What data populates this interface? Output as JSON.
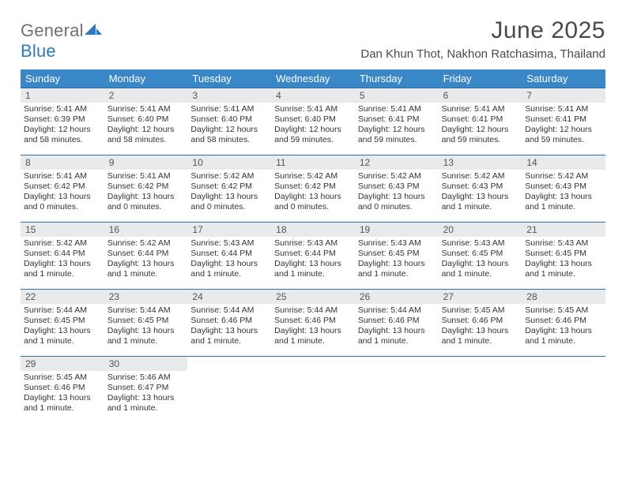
{
  "logo": {
    "general": "General",
    "blue": "Blue"
  },
  "title": "June 2025",
  "location": "Dan Khun Thot, Nakhon Ratchasima, Thailand",
  "colors": {
    "header_bg": "#3a87c8",
    "header_text": "#ffffff",
    "week_border": "#2e6fa8",
    "date_bar_bg": "#e9eaeb",
    "body_text": "#333333",
    "title_text": "#4a4a4a",
    "logo_gray": "#6f7074",
    "logo_blue": "#2e78bd"
  },
  "weekdays": [
    "Sunday",
    "Monday",
    "Tuesday",
    "Wednesday",
    "Thursday",
    "Friday",
    "Saturday"
  ],
  "weeks": [
    [
      {
        "date": "1",
        "sunrise": "Sunrise: 5:41 AM",
        "sunset": "Sunset: 6:39 PM",
        "daylight": "Daylight: 12 hours and 58 minutes."
      },
      {
        "date": "2",
        "sunrise": "Sunrise: 5:41 AM",
        "sunset": "Sunset: 6:40 PM",
        "daylight": "Daylight: 12 hours and 58 minutes."
      },
      {
        "date": "3",
        "sunrise": "Sunrise: 5:41 AM",
        "sunset": "Sunset: 6:40 PM",
        "daylight": "Daylight: 12 hours and 58 minutes."
      },
      {
        "date": "4",
        "sunrise": "Sunrise: 5:41 AM",
        "sunset": "Sunset: 6:40 PM",
        "daylight": "Daylight: 12 hours and 59 minutes."
      },
      {
        "date": "5",
        "sunrise": "Sunrise: 5:41 AM",
        "sunset": "Sunset: 6:41 PM",
        "daylight": "Daylight: 12 hours and 59 minutes."
      },
      {
        "date": "6",
        "sunrise": "Sunrise: 5:41 AM",
        "sunset": "Sunset: 6:41 PM",
        "daylight": "Daylight: 12 hours and 59 minutes."
      },
      {
        "date": "7",
        "sunrise": "Sunrise: 5:41 AM",
        "sunset": "Sunset: 6:41 PM",
        "daylight": "Daylight: 12 hours and 59 minutes."
      }
    ],
    [
      {
        "date": "8",
        "sunrise": "Sunrise: 5:41 AM",
        "sunset": "Sunset: 6:42 PM",
        "daylight": "Daylight: 13 hours and 0 minutes."
      },
      {
        "date": "9",
        "sunrise": "Sunrise: 5:41 AM",
        "sunset": "Sunset: 6:42 PM",
        "daylight": "Daylight: 13 hours and 0 minutes."
      },
      {
        "date": "10",
        "sunrise": "Sunrise: 5:42 AM",
        "sunset": "Sunset: 6:42 PM",
        "daylight": "Daylight: 13 hours and 0 minutes."
      },
      {
        "date": "11",
        "sunrise": "Sunrise: 5:42 AM",
        "sunset": "Sunset: 6:42 PM",
        "daylight": "Daylight: 13 hours and 0 minutes."
      },
      {
        "date": "12",
        "sunrise": "Sunrise: 5:42 AM",
        "sunset": "Sunset: 6:43 PM",
        "daylight": "Daylight: 13 hours and 0 minutes."
      },
      {
        "date": "13",
        "sunrise": "Sunrise: 5:42 AM",
        "sunset": "Sunset: 6:43 PM",
        "daylight": "Daylight: 13 hours and 1 minute."
      },
      {
        "date": "14",
        "sunrise": "Sunrise: 5:42 AM",
        "sunset": "Sunset: 6:43 PM",
        "daylight": "Daylight: 13 hours and 1 minute."
      }
    ],
    [
      {
        "date": "15",
        "sunrise": "Sunrise: 5:42 AM",
        "sunset": "Sunset: 6:44 PM",
        "daylight": "Daylight: 13 hours and 1 minute."
      },
      {
        "date": "16",
        "sunrise": "Sunrise: 5:42 AM",
        "sunset": "Sunset: 6:44 PM",
        "daylight": "Daylight: 13 hours and 1 minute."
      },
      {
        "date": "17",
        "sunrise": "Sunrise: 5:43 AM",
        "sunset": "Sunset: 6:44 PM",
        "daylight": "Daylight: 13 hours and 1 minute."
      },
      {
        "date": "18",
        "sunrise": "Sunrise: 5:43 AM",
        "sunset": "Sunset: 6:44 PM",
        "daylight": "Daylight: 13 hours and 1 minute."
      },
      {
        "date": "19",
        "sunrise": "Sunrise: 5:43 AM",
        "sunset": "Sunset: 6:45 PM",
        "daylight": "Daylight: 13 hours and 1 minute."
      },
      {
        "date": "20",
        "sunrise": "Sunrise: 5:43 AM",
        "sunset": "Sunset: 6:45 PM",
        "daylight": "Daylight: 13 hours and 1 minute."
      },
      {
        "date": "21",
        "sunrise": "Sunrise: 5:43 AM",
        "sunset": "Sunset: 6:45 PM",
        "daylight": "Daylight: 13 hours and 1 minute."
      }
    ],
    [
      {
        "date": "22",
        "sunrise": "Sunrise: 5:44 AM",
        "sunset": "Sunset: 6:45 PM",
        "daylight": "Daylight: 13 hours and 1 minute."
      },
      {
        "date": "23",
        "sunrise": "Sunrise: 5:44 AM",
        "sunset": "Sunset: 6:45 PM",
        "daylight": "Daylight: 13 hours and 1 minute."
      },
      {
        "date": "24",
        "sunrise": "Sunrise: 5:44 AM",
        "sunset": "Sunset: 6:46 PM",
        "daylight": "Daylight: 13 hours and 1 minute."
      },
      {
        "date": "25",
        "sunrise": "Sunrise: 5:44 AM",
        "sunset": "Sunset: 6:46 PM",
        "daylight": "Daylight: 13 hours and 1 minute."
      },
      {
        "date": "26",
        "sunrise": "Sunrise: 5:44 AM",
        "sunset": "Sunset: 6:46 PM",
        "daylight": "Daylight: 13 hours and 1 minute."
      },
      {
        "date": "27",
        "sunrise": "Sunrise: 5:45 AM",
        "sunset": "Sunset: 6:46 PM",
        "daylight": "Daylight: 13 hours and 1 minute."
      },
      {
        "date": "28",
        "sunrise": "Sunrise: 5:45 AM",
        "sunset": "Sunset: 6:46 PM",
        "daylight": "Daylight: 13 hours and 1 minute."
      }
    ],
    [
      {
        "date": "29",
        "sunrise": "Sunrise: 5:45 AM",
        "sunset": "Sunset: 6:46 PM",
        "daylight": "Daylight: 13 hours and 1 minute."
      },
      {
        "date": "30",
        "sunrise": "Sunrise: 5:46 AM",
        "sunset": "Sunset: 6:47 PM",
        "daylight": "Daylight: 13 hours and 1 minute."
      },
      null,
      null,
      null,
      null,
      null
    ]
  ]
}
